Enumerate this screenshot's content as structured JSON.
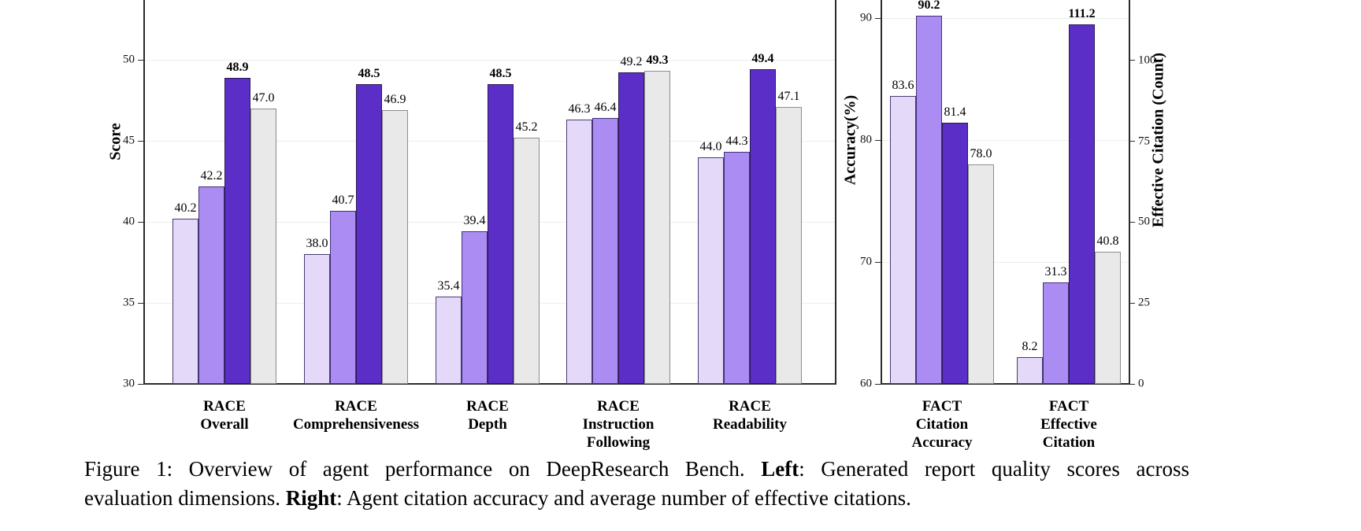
{
  "figure": {
    "caption_lines": [
      [
        {
          "text": "Figure 1: Overview of agent performance on DeepResearch Bench. ",
          "bold": false
        },
        {
          "text": "Left",
          "bold": true
        },
        {
          "text": ": Generated report quality scores across",
          "bold": false
        }
      ],
      [
        {
          "text": "evaluation dimensions. ",
          "bold": false
        },
        {
          "text": "Right",
          "bold": true
        },
        {
          "text": ": Agent citation accuracy and average number of effective citations.",
          "bold": false
        }
      ]
    ]
  },
  "palette": {
    "series_fill": [
      "#E5D9FA",
      "#AA8CF2",
      "#5B2EC8",
      "#E9E9E9"
    ],
    "series_border": [
      "#4A3A70",
      "#41307A",
      "#2A1A55",
      "#8C8C8C"
    ],
    "axis_color": "#2b2b2b",
    "grid_color": "#ededed",
    "background": "#ffffff"
  },
  "chart_data": [
    {
      "type": "bar",
      "title": "",
      "xlabel": "",
      "ylabel": "Score",
      "ylim": [
        30,
        53.7
      ],
      "yticks": [
        30,
        35,
        40,
        45,
        50
      ],
      "grid": true,
      "legend": "none-visible",
      "value_labels": true,
      "bold_max_in_group": true,
      "categories": [
        "RACE\nOverall",
        "RACE\nComprehensiveness",
        "RACE\nDepth",
        "RACE\nInstruction\nFollowing",
        "RACE\nReadability"
      ],
      "series": [
        {
          "name": "bar-1-light-lavender",
          "values": [
            40.2,
            38.0,
            35.4,
            46.3,
            44.0
          ]
        },
        {
          "name": "bar-2-medium-purple",
          "values": [
            42.2,
            40.7,
            39.4,
            46.4,
            44.3
          ]
        },
        {
          "name": "bar-3-dark-purple",
          "values": [
            48.9,
            48.5,
            48.5,
            49.2,
            49.4
          ]
        },
        {
          "name": "bar-4-gray",
          "values": [
            47.0,
            46.9,
            45.2,
            49.3,
            47.1
          ]
        }
      ]
    },
    {
      "type": "bar",
      "title": "",
      "xlabel": "",
      "ylabel_left": "Accuracy(%)",
      "ylabel_right": "Effective Citation (Count)",
      "ylim_left": [
        60,
        91.5
      ],
      "ylim_right": [
        0,
        118.7
      ],
      "yticks_left": [
        60,
        70,
        80,
        90
      ],
      "yticks_right": [
        0,
        25,
        50,
        75,
        100
      ],
      "grid": true,
      "legend": "none-visible",
      "value_labels": true,
      "bold_max_in_group": true,
      "categories": [
        "FACT\nCitation\nAccuracy",
        "FACT\nEffective\nCitation"
      ],
      "axis_for_category": [
        "left",
        "right"
      ],
      "series": [
        {
          "name": "bar-1-light-lavender",
          "values": [
            83.6,
            8.2
          ]
        },
        {
          "name": "bar-2-medium-purple",
          "values": [
            90.2,
            31.3
          ]
        },
        {
          "name": "bar-3-dark-purple",
          "values": [
            81.4,
            111.2
          ]
        },
        {
          "name": "bar-4-gray",
          "values": [
            78.0,
            40.8
          ]
        }
      ]
    }
  ]
}
